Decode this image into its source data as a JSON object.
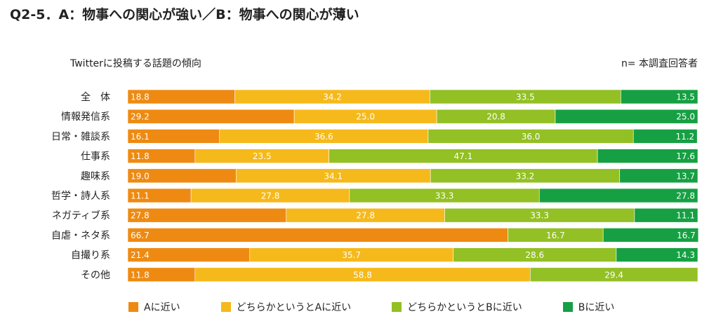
{
  "header": {
    "title": "Q2-5．A：物事への関心が強い／B：物事への関心が薄い",
    "subtitle": "Twitterに投稿する話題の傾向",
    "note": "n= 本調査回答者"
  },
  "chart_data": {
    "type": "bar",
    "orientation": "horizontal-stacked-100",
    "categories": [
      "全　体",
      "情報発信系",
      "日常・雑談系",
      "仕事系",
      "趣味系",
      "哲学・詩人系",
      "ネガティブ系",
      "自虐・ネタ系",
      "自撮り系",
      "その他"
    ],
    "series": [
      {
        "name": "Aに近い",
        "color": "#ee8a12",
        "values": [
          18.8,
          29.2,
          16.1,
          11.8,
          19.0,
          11.1,
          27.8,
          66.7,
          21.4,
          11.8
        ]
      },
      {
        "name": "どちらかというとAに近い",
        "color": "#f6b91b",
        "values": [
          34.2,
          25.0,
          36.6,
          23.5,
          34.1,
          27.8,
          27.8,
          0,
          35.7,
          58.8
        ]
      },
      {
        "name": "どちらかというとBに近い",
        "color": "#93c024",
        "values": [
          33.5,
          20.8,
          36.0,
          47.1,
          33.2,
          33.3,
          33.3,
          16.7,
          28.6,
          29.4
        ]
      },
      {
        "name": "Bに近い",
        "color": "#16a043",
        "values": [
          13.5,
          25.0,
          11.2,
          17.6,
          13.7,
          27.8,
          11.1,
          16.7,
          14.3,
          0
        ]
      }
    ],
    "xlim": [
      0,
      100
    ],
    "legend_position": "bottom"
  }
}
